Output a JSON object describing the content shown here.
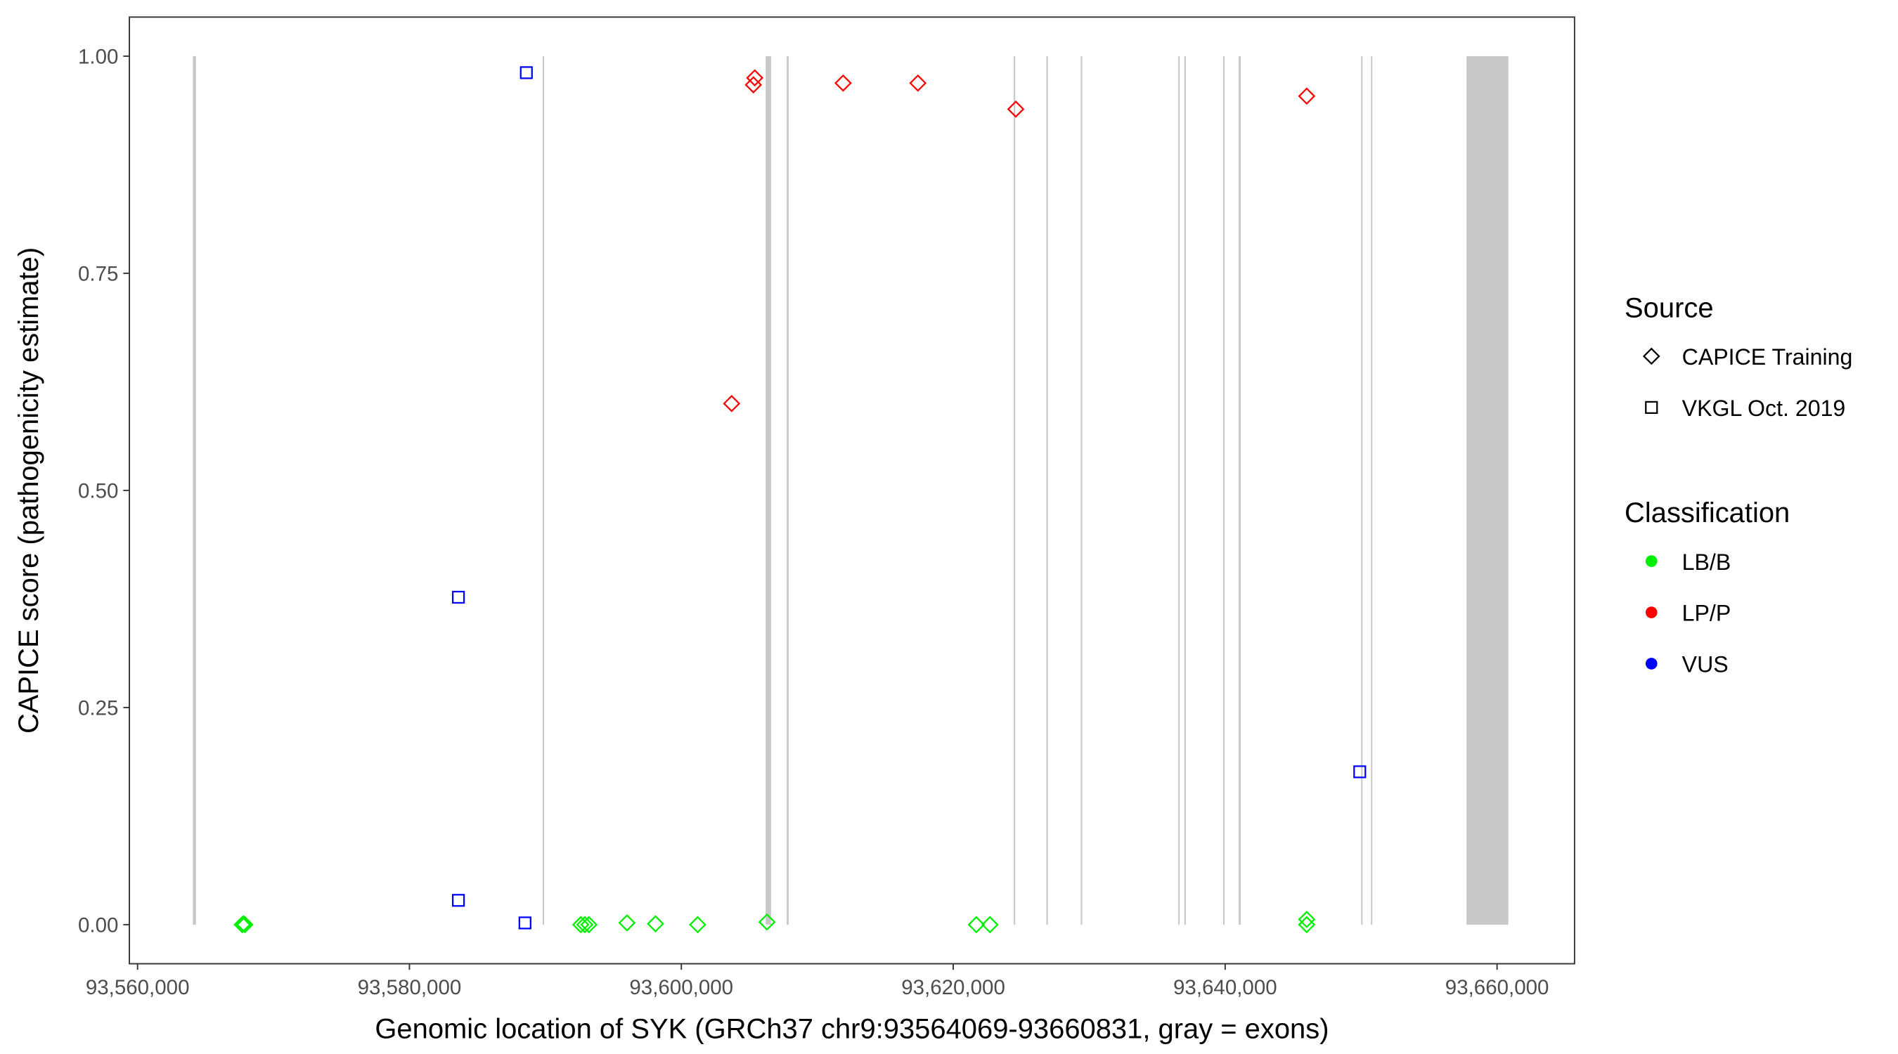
{
  "chart_data": {
    "type": "scatter",
    "title": "",
    "xlabel": "Genomic location of SYK (GRCh37 chr9:93564069-93660831, gray = exons)",
    "ylabel": "CAPICE score (pathogenicity estimate)",
    "xlim": [
      93559400,
      93665700
    ],
    "ylim": [
      -0.045,
      1.045
    ],
    "x_ticks": [
      93560000,
      93580000,
      93600000,
      93620000,
      93640000,
      93660000
    ],
    "x_tick_labels": [
      "93,560,000",
      "93,580,000",
      "93,600,000",
      "93,620,000",
      "93,640,000",
      "93,660,000"
    ],
    "y_ticks": [
      0,
      0.25,
      0.5,
      0.75,
      1.0
    ],
    "y_tick_labels": [
      "0.00",
      "0.25",
      "0.50",
      "0.75",
      "1.00"
    ],
    "grid": false,
    "exons": [
      [
        93564069,
        93564300
      ],
      [
        93589800,
        93589900
      ],
      [
        93606200,
        93606600
      ],
      [
        93607750,
        93607900
      ],
      [
        93624450,
        93624550
      ],
      [
        93626850,
        93626950
      ],
      [
        93629380,
        93629450
      ],
      [
        93636550,
        93636650
      ],
      [
        93637000,
        93637100
      ],
      [
        93639850,
        93639950
      ],
      [
        93641000,
        93641150
      ],
      [
        93650000,
        93650100
      ],
      [
        93650720,
        93650800
      ],
      [
        93657750,
        93660831
      ]
    ],
    "exon_color": "#c8c8c8",
    "legend": {
      "position": "right",
      "source_title": "Source",
      "source_items": [
        {
          "label": "CAPICE Training",
          "shape": "diamond"
        },
        {
          "label": "VKGL Oct. 2019",
          "shape": "square"
        }
      ],
      "class_title": "Classification",
      "class_items": [
        {
          "label": "LB/B",
          "color": "#00ee00"
        },
        {
          "label": "LP/P",
          "color": "#ff0000"
        },
        {
          "label": "VUS",
          "color": "#0000ff"
        }
      ]
    },
    "points": [
      {
        "x": 93567700,
        "y": 0.0,
        "source": "CAPICE Training",
        "class": "LB/B"
      },
      {
        "x": 93567900,
        "y": 0.0,
        "source": "CAPICE Training",
        "class": "LB/B"
      },
      {
        "x": 93567800,
        "y": 0.001,
        "source": "CAPICE Training",
        "class": "LB/B"
      },
      {
        "x": 93592600,
        "y": 0.0,
        "source": "CAPICE Training",
        "class": "LB/B"
      },
      {
        "x": 93592900,
        "y": 0.0,
        "source": "CAPICE Training",
        "class": "LB/B"
      },
      {
        "x": 93593200,
        "y": 0.0,
        "source": "CAPICE Training",
        "class": "LB/B"
      },
      {
        "x": 93596000,
        "y": 0.002,
        "source": "CAPICE Training",
        "class": "LB/B"
      },
      {
        "x": 93598100,
        "y": 0.001,
        "source": "CAPICE Training",
        "class": "LB/B"
      },
      {
        "x": 93601200,
        "y": 0.0,
        "source": "CAPICE Training",
        "class": "LB/B"
      },
      {
        "x": 93606300,
        "y": 0.003,
        "source": "CAPICE Training",
        "class": "LB/B"
      },
      {
        "x": 93621700,
        "y": 0.0,
        "source": "CAPICE Training",
        "class": "LB/B"
      },
      {
        "x": 93622700,
        "y": 0.0,
        "source": "CAPICE Training",
        "class": "LB/B"
      },
      {
        "x": 93646000,
        "y": 0.006,
        "source": "CAPICE Training",
        "class": "LB/B"
      },
      {
        "x": 93646000,
        "y": 0.0,
        "source": "CAPICE Training",
        "class": "LB/B"
      },
      {
        "x": 93603700,
        "y": 0.6,
        "source": "CAPICE Training",
        "class": "LP/P"
      },
      {
        "x": 93605300,
        "y": 0.967,
        "source": "CAPICE Training",
        "class": "LP/P"
      },
      {
        "x": 93605400,
        "y": 0.975,
        "source": "CAPICE Training",
        "class": "LP/P"
      },
      {
        "x": 93611900,
        "y": 0.969,
        "source": "CAPICE Training",
        "class": "LP/P"
      },
      {
        "x": 93617400,
        "y": 0.969,
        "source": "CAPICE Training",
        "class": "LP/P"
      },
      {
        "x": 93624600,
        "y": 0.939,
        "source": "CAPICE Training",
        "class": "LP/P"
      },
      {
        "x": 93646000,
        "y": 0.954,
        "source": "CAPICE Training",
        "class": "LP/P"
      },
      {
        "x": 93588600,
        "y": 0.981,
        "source": "VKGL Oct. 2019",
        "class": "VUS"
      },
      {
        "x": 93583600,
        "y": 0.377,
        "source": "VKGL Oct. 2019",
        "class": "VUS"
      },
      {
        "x": 93583600,
        "y": 0.028,
        "source": "VKGL Oct. 2019",
        "class": "VUS"
      },
      {
        "x": 93588500,
        "y": 0.002,
        "source": "VKGL Oct. 2019",
        "class": "VUS"
      },
      {
        "x": 93649900,
        "y": 0.176,
        "source": "VKGL Oct. 2019",
        "class": "VUS"
      }
    ]
  }
}
